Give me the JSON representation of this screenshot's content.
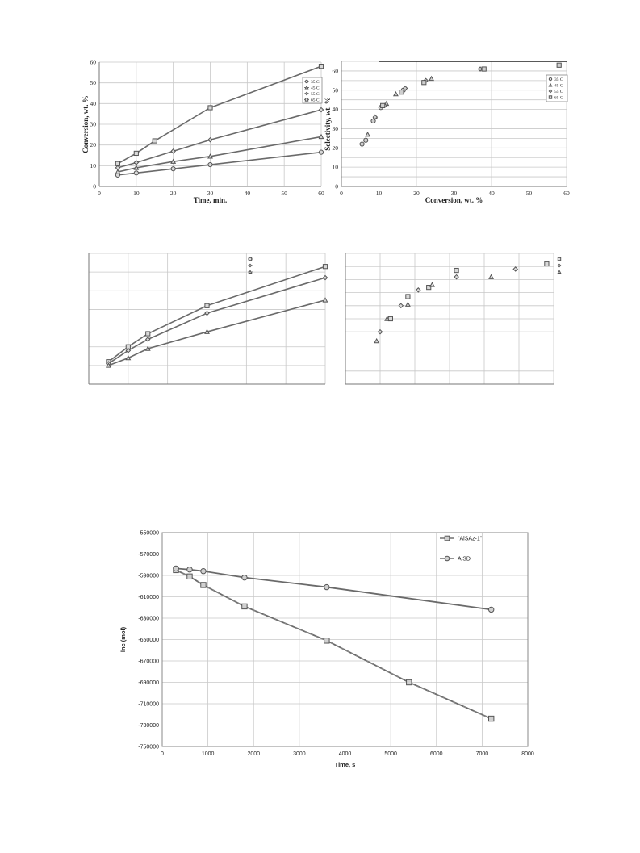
{
  "chart_data": [
    {
      "type": "line",
      "xlabel": "Time, min.",
      "ylabel": "Conversion, wt. %",
      "xlim": [
        0,
        60
      ],
      "ylim": [
        0,
        60
      ],
      "xticks": [
        "0",
        "10",
        "20",
        "30",
        "40",
        "50",
        "60"
      ],
      "yticks": [
        "0",
        "10",
        "20",
        "30",
        "40",
        "50",
        "60"
      ],
      "grid": true,
      "legend": "top-right",
      "series": [
        {
          "name": "35 C",
          "marker": "circle",
          "x": [
            5,
            10,
            20,
            30,
            60
          ],
          "y": [
            5.5,
            6.5,
            8.5,
            10.5,
            16.5
          ]
        },
        {
          "name": "45 C",
          "marker": "triangle",
          "x": [
            5,
            10,
            20,
            30,
            60
          ],
          "y": [
            7,
            9,
            12,
            14.5,
            24
          ]
        },
        {
          "name": "55 C",
          "marker": "diamond",
          "x": [
            5,
            10,
            20,
            30,
            60
          ],
          "y": [
            9,
            11.5,
            17,
            22.5,
            37
          ]
        },
        {
          "name": "65 C",
          "marker": "square",
          "x": [
            5,
            10,
            15,
            30,
            60
          ],
          "y": [
            11,
            16,
            22,
            38,
            58
          ]
        }
      ]
    },
    {
      "type": "scatter",
      "xlabel": "Conversion, wt. %",
      "ylabel": "Selectivity, wt. %",
      "xlim": [
        0,
        60
      ],
      "ylim": [
        0,
        65
      ],
      "xticks": [
        "0",
        "10",
        "20",
        "30",
        "40",
        "50",
        "60"
      ],
      "yticks": [
        "0",
        "10",
        "20",
        "30",
        "40",
        "50",
        "60"
      ],
      "grid": true,
      "legend": "right",
      "series": [
        {
          "name": "35 C",
          "marker": "circle",
          "x": [
            5.5,
            6.5,
            8.5,
            10.5,
            16.5
          ],
          "y": [
            22,
            24,
            34,
            41,
            50
          ]
        },
        {
          "name": "45 C",
          "marker": "triangle",
          "x": [
            7,
            9,
            12,
            14.5,
            24
          ],
          "y": [
            27,
            36,
            43,
            48,
            56
          ]
        },
        {
          "name": "55 C",
          "marker": "diamond",
          "x": [
            9,
            11.5,
            17,
            22.5,
            37
          ],
          "y": [
            36,
            42,
            51,
            55,
            61
          ]
        },
        {
          "name": "65 C",
          "marker": "square",
          "x": [
            11,
            16,
            22,
            38,
            58
          ],
          "y": [
            42,
            49,
            54,
            61,
            63
          ]
        }
      ]
    },
    {
      "type": "line",
      "xlim": [
        0,
        60
      ],
      "ylim": [
        0,
        70
      ],
      "grid": true,
      "legend": "top-right",
      "series": [
        {
          "marker": "square",
          "x": [
            5,
            10,
            15,
            30,
            60
          ],
          "y": [
            12,
            20,
            27,
            42,
            63
          ]
        },
        {
          "marker": "diamond",
          "x": [
            5,
            10,
            15,
            30,
            60
          ],
          "y": [
            11,
            18,
            24,
            38,
            57
          ]
        },
        {
          "marker": "triangle",
          "x": [
            5,
            10,
            15,
            30,
            60
          ],
          "y": [
            10,
            14,
            19,
            28,
            45
          ]
        }
      ]
    },
    {
      "type": "scatter",
      "xlim": [
        0,
        60
      ],
      "ylim": [
        0,
        100
      ],
      "grid": true,
      "legend": "right",
      "series": [
        {
          "marker": "square",
          "x": [
            13,
            18,
            24,
            32,
            58
          ],
          "y": [
            50,
            67,
            74,
            87,
            92
          ]
        },
        {
          "marker": "diamond",
          "x": [
            10,
            16,
            21,
            32,
            49
          ],
          "y": [
            40,
            60,
            72,
            82,
            88
          ]
        },
        {
          "marker": "triangle",
          "x": [
            9,
            12,
            18,
            25,
            42
          ],
          "y": [
            33,
            50,
            61,
            76,
            82
          ]
        }
      ]
    },
    {
      "type": "line",
      "xlabel": "Time, s",
      "ylabel": "lnc (mol)",
      "xlim": [
        0,
        8000
      ],
      "ylim": [
        -750000,
        -550000
      ],
      "xticks": [
        "0",
        "1000",
        "2000",
        "3000",
        "4000",
        "5000",
        "6000",
        "7000",
        "8000"
      ],
      "yticks": [
        "-550000",
        "-570000",
        "-590000",
        "-610000",
        "-630000",
        "-650000",
        "-670000",
        "-690000",
        "-710000",
        "-730000",
        "-750000"
      ],
      "grid": true,
      "legend": "top-right",
      "series": [
        {
          "name": "\"AlSAz-1\"",
          "marker": "square",
          "x": [
            300,
            600,
            900,
            1800,
            3600,
            5400,
            7200
          ],
          "y": [
            -585000,
            -591000,
            -599000,
            -619000,
            -651000,
            -690000,
            -724000
          ]
        },
        {
          "name": "AlSD",
          "marker": "circle",
          "x": [
            300,
            600,
            900,
            1800,
            3600,
            7200
          ],
          "y": [
            -583500,
            -584500,
            -586000,
            -592000,
            -601000,
            -622000
          ]
        }
      ]
    }
  ]
}
